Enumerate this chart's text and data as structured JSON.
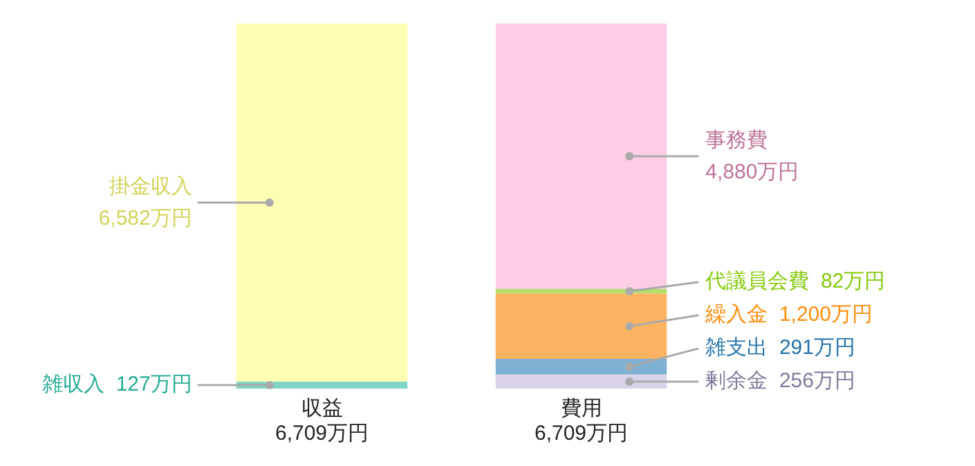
{
  "chart_data": {
    "type": "bar",
    "stacked": true,
    "categories": [
      "収益",
      "費用"
    ],
    "totals": [
      "6,709万円",
      "6,709万円"
    ],
    "ylim": [
      0,
      6709
    ],
    "tick_labels": "x",
    "grid": false,
    "legend": false,
    "series": [
      {
        "name": "雑収入",
        "color": "#80d4c6",
        "values": [
          127,
          null
        ],
        "value_labels": [
          "127万円",
          null
        ]
      },
      {
        "name": "掛金収入",
        "color": "#ffffb3",
        "values": [
          6582,
          null
        ],
        "value_labels": [
          "6,582万円",
          null
        ]
      },
      {
        "name": "剰余金",
        "color": "#d9d2e9",
        "values": [
          null,
          256
        ],
        "value_labels": [
          null,
          "256万円"
        ]
      },
      {
        "name": "雑支出",
        "color": "#80b1d3",
        "values": [
          null,
          291
        ],
        "value_labels": [
          null,
          "291万円"
        ]
      },
      {
        "name": "繰入金",
        "color": "#fdb462",
        "values": [
          null,
          1200
        ],
        "value_labels": [
          null,
          "1,200万円"
        ]
      },
      {
        "name": "代議員会費",
        "color": "#b3de69",
        "values": [
          null,
          82
        ],
        "value_labels": [
          null,
          "82万円"
        ]
      },
      {
        "name": "事務費",
        "color": "#fccde5",
        "values": [
          null,
          4880
        ],
        "value_labels": [
          null,
          "4,880万円"
        ]
      }
    ]
  }
}
